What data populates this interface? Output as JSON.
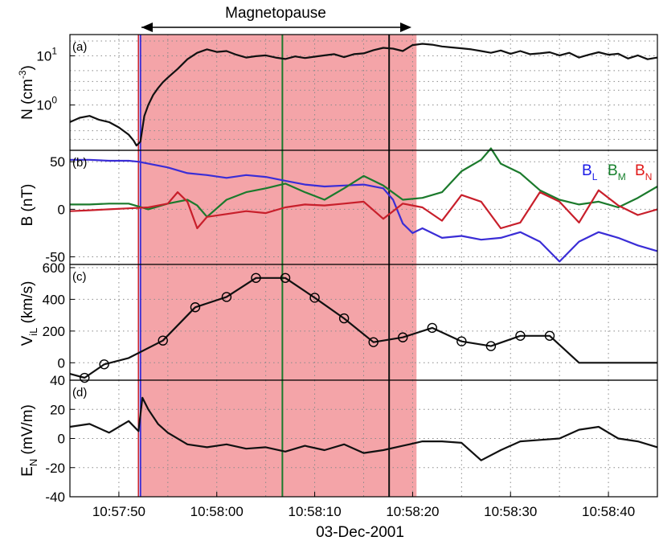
{
  "figure": {
    "title": "Magnetopause",
    "date_label": "03-Dec-2001",
    "time_ticks": [
      "10:57:50",
      "10:58:00",
      "10:58:10",
      "10:58:20",
      "10:58:30",
      "10:58:40"
    ]
  },
  "colors": {
    "shade": "#f4a4a8",
    "line_blue": "#3a2dd6",
    "line_red": "#c81f2b",
    "line_green": "#1b7a2c",
    "line_black": "#111111",
    "BL": "#1a1ae6",
    "BM": "#16802c",
    "BN": "#e01818"
  },
  "panels": {
    "a": {
      "tag": "(a)",
      "ylabel": "N (cm",
      "ylabel_sup": "-3",
      "ylabel_end": ")",
      "ticks": [
        "10",
        "10"
      ],
      "tick_sups": [
        "1",
        "0"
      ]
    },
    "b": {
      "tag": "(b)",
      "ylabel": "B (nT)",
      "ticks": [
        "50",
        "0",
        "-50"
      ],
      "legend": {
        "L": {
          "base": "B",
          "sub": "L"
        },
        "M": {
          "base": "B",
          "sub": "M"
        },
        "N": {
          "base": "B",
          "sub": "N"
        }
      }
    },
    "c": {
      "tag": "(c)",
      "ylabel_base": "V",
      "ylabel_sub": "iL",
      "ylabel_end": " (km/s)",
      "ticks": [
        "600",
        "400",
        "200",
        "0"
      ]
    },
    "d": {
      "tag": "(d)",
      "ylabel_base": "E",
      "ylabel_sub": "N",
      "ylabel_end": " (mV/m)",
      "ticks": [
        "40",
        "20",
        "0",
        "-20",
        "-40"
      ]
    }
  },
  "chart_data": [
    {
      "type": "line",
      "panel": "a",
      "ylabel": "N (cm-3)",
      "yscale": "log",
      "ylim": [
        0.12,
        27
      ],
      "x_unit": "seconds after 10:57:45 UT",
      "xlim": [
        0,
        60
      ],
      "shaded_interval": [
        7.2,
        35.4
      ],
      "vertical_lines": [
        {
          "x": 7.2,
          "color": "blue"
        },
        {
          "x": 21.7,
          "color": "green"
        },
        {
          "x": 32.6,
          "color": "black"
        }
      ],
      "series": [
        {
          "x": [
            0,
            1,
            2,
            3,
            4,
            5,
            6,
            6.5,
            6.8,
            7.2,
            7.6,
            8,
            8.5,
            9,
            9.5,
            10,
            10.5,
            11,
            12,
            13,
            14,
            15,
            16,
            17,
            18,
            19,
            20,
            21,
            22,
            23,
            24,
            25,
            26,
            27,
            28,
            29,
            30,
            31,
            32,
            33,
            34,
            35,
            36,
            37,
            38,
            39,
            40,
            41,
            42,
            43,
            44,
            45,
            46,
            47,
            48,
            49,
            50,
            51,
            52,
            53,
            54,
            55,
            56,
            57,
            58,
            59,
            60
          ],
          "y": [
            0.45,
            0.55,
            0.6,
            0.5,
            0.45,
            0.35,
            0.25,
            0.19,
            0.15,
            0.18,
            0.6,
            1.0,
            1.6,
            2.2,
            2.9,
            3.6,
            4.4,
            5.4,
            8.5,
            11.5,
            13.5,
            12,
            12.5,
            10.5,
            9.2,
            9.8,
            10.2,
            9.2,
            8.6,
            9.7,
            9,
            9.6,
            10.2,
            10.8,
            9.4,
            10.8,
            11.2,
            13,
            14.5,
            14,
            12.5,
            16.5,
            17.5,
            16.8,
            15.5,
            14.8,
            14.2,
            13.5,
            12.5,
            11.5,
            12.8,
            11,
            12.5,
            10.8,
            11.2,
            11.8,
            10.2,
            11.5,
            9.2,
            10.5,
            11.8,
            10.5,
            11,
            8.8,
            10.2,
            8.5,
            9.2
          ]
        }
      ]
    },
    {
      "type": "line",
      "panel": "b",
      "ylabel": "B (nT)",
      "ylim": [
        -58,
        62
      ],
      "legend_position": "top-right",
      "series": [
        {
          "name": "BL",
          "x": [
            0,
            2,
            4,
            6,
            7,
            8,
            10,
            12,
            14,
            16,
            18,
            20,
            22,
            24,
            26,
            28,
            30,
            32,
            33,
            34,
            35,
            36,
            38,
            40,
            42,
            44,
            46,
            48,
            50,
            52,
            54,
            56,
            58,
            60
          ],
          "y": [
            52,
            52,
            51,
            51,
            50,
            48,
            44,
            38,
            36,
            33,
            36,
            34,
            30,
            26,
            24,
            25,
            26,
            22,
            10,
            -15,
            -25,
            -20,
            -30,
            -28,
            -32,
            -30,
            -24,
            -34,
            -55,
            -34,
            -24,
            -30,
            -38,
            -44
          ]
        },
        {
          "name": "BM",
          "x": [
            0,
            2,
            4,
            6,
            7,
            8,
            10,
            12,
            13,
            14,
            16,
            18,
            20,
            22,
            24,
            26,
            28,
            30,
            32,
            34,
            36,
            38,
            40,
            42,
            43,
            44,
            46,
            48,
            50,
            52,
            54,
            56,
            58,
            60
          ],
          "y": [
            5,
            5,
            6,
            6,
            3,
            0,
            6,
            10,
            4,
            -8,
            10,
            18,
            22,
            27,
            18,
            10,
            22,
            35,
            25,
            10,
            12,
            18,
            40,
            52,
            64,
            48,
            38,
            20,
            10,
            5,
            8,
            2,
            12,
            24
          ]
        },
        {
          "name": "BN",
          "x": [
            0,
            2,
            4,
            6,
            8,
            10,
            11,
            12,
            13,
            14,
            16,
            18,
            20,
            22,
            24,
            26,
            28,
            30,
            32,
            34,
            36,
            38,
            40,
            42,
            44,
            46,
            48,
            50,
            52,
            54,
            56,
            58,
            60
          ],
          "y": [
            -2,
            -1,
            0,
            1,
            2,
            6,
            18,
            8,
            -20,
            -8,
            -5,
            -2,
            -4,
            2,
            5,
            4,
            6,
            8,
            -10,
            6,
            2,
            -12,
            15,
            8,
            -20,
            -14,
            18,
            8,
            -14,
            20,
            4,
            -6,
            0
          ]
        }
      ]
    },
    {
      "type": "line",
      "panel": "c",
      "ylabel": "ViL (km/s)",
      "ylim": [
        -110,
        620
      ],
      "markers": "open circles",
      "series": [
        {
          "x": [
            0,
            1.5,
            3.5,
            6,
            9.5,
            12.8,
            16,
            19,
            22,
            25,
            28,
            31,
            34,
            37,
            40,
            43,
            46,
            49,
            52,
            55,
            58,
            60
          ],
          "y": [
            -70,
            -95,
            -10,
            30,
            140,
            350,
            415,
            535,
            535,
            410,
            280,
            130,
            160,
            220,
            135,
            105,
            170,
            170,
            0,
            0,
            0,
            0
          ],
          "markers_at": [
            1.5,
            3.5,
            9.5,
            12.8,
            16,
            19,
            22,
            25,
            28,
            31,
            34,
            37,
            40,
            43,
            46,
            49
          ]
        }
      ]
    },
    {
      "type": "line",
      "panel": "d",
      "ylabel": "EN (mV/m)",
      "ylim": [
        -40,
        40
      ],
      "series": [
        {
          "x": [
            0,
            2,
            4,
            6,
            7,
            7.4,
            8,
            9,
            10,
            12,
            14,
            16,
            18,
            20,
            22,
            24,
            26,
            28,
            30,
            32,
            34,
            36,
            38,
            40,
            42,
            44,
            46,
            48,
            50,
            52,
            54,
            56,
            58,
            60
          ],
          "y": [
            8,
            10,
            4,
            12,
            5,
            28,
            20,
            10,
            4,
            -4,
            -6,
            -4,
            -7,
            -6,
            -9,
            -5,
            -8,
            -4,
            -10,
            -8,
            -5,
            -2,
            -2,
            -3,
            -15,
            -8,
            -2,
            -1,
            0,
            6,
            8,
            0,
            -2,
            -6
          ]
        }
      ]
    }
  ]
}
